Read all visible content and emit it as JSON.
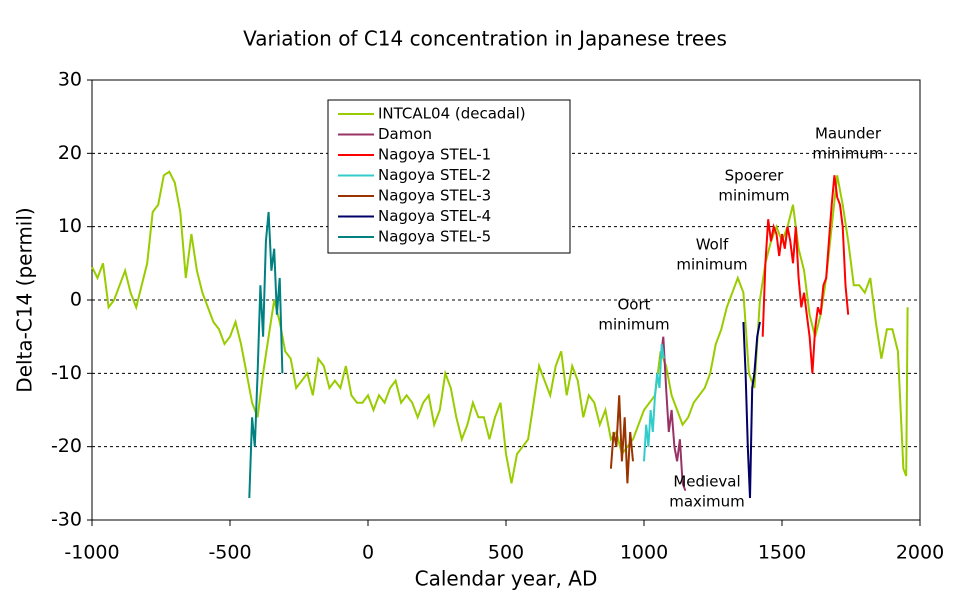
{
  "chart_data": {
    "type": "line",
    "title": "Variation of C14 concentration in Japanese trees",
    "x_label": "Calendar year, AD",
    "y_label": "Delta-C14 (permil)",
    "xlim": [
      -1000,
      2000
    ],
    "xticks": [
      -1000,
      -500,
      0,
      500,
      1000,
      1500,
      2000
    ],
    "ylim": [
      -30,
      30
    ],
    "yticks": [
      -30,
      -20,
      -10,
      0,
      10,
      20,
      30
    ],
    "grid": true,
    "legend": "upper center",
    "series": [
      {
        "name": "INTCAL04 (decadal)",
        "color": "#99cc00",
        "x": [
          -1000,
          -980,
          -960,
          -940,
          -920,
          -900,
          -880,
          -860,
          -840,
          -820,
          -800,
          -780,
          -760,
          -740,
          -720,
          -700,
          -680,
          -660,
          -640,
          -620,
          -600,
          -580,
          -560,
          -540,
          -520,
          -500,
          -480,
          -460,
          -440,
          -420,
          -400,
          -380,
          -360,
          -340,
          -320,
          -300,
          -280,
          -260,
          -240,
          -220,
          -200,
          -180,
          -160,
          -140,
          -120,
          -100,
          -80,
          -60,
          -40,
          -20,
          0,
          20,
          40,
          60,
          80,
          100,
          120,
          140,
          160,
          180,
          200,
          220,
          240,
          260,
          280,
          300,
          320,
          340,
          360,
          380,
          400,
          420,
          440,
          460,
          480,
          500,
          520,
          540,
          560,
          580,
          600,
          620,
          640,
          660,
          680,
          700,
          720,
          740,
          760,
          780,
          800,
          820,
          840,
          860,
          880,
          900,
          920,
          940,
          960,
          980,
          1000,
          1020,
          1040,
          1060,
          1080,
          1100,
          1120,
          1140,
          1160,
          1180,
          1200,
          1220,
          1240,
          1260,
          1280,
          1300,
          1320,
          1340,
          1360,
          1380,
          1400,
          1420,
          1440,
          1460,
          1480,
          1500,
          1520,
          1540,
          1560,
          1580,
          1600,
          1620,
          1640,
          1660,
          1680,
          1700,
          1720,
          1740,
          1760,
          1780,
          1800,
          1820,
          1840,
          1860,
          1880,
          1900,
          1920,
          1940,
          1950,
          1955
        ],
        "values": [
          4.5,
          3,
          5,
          -1,
          0,
          2,
          4,
          1,
          -1,
          2,
          5,
          12,
          13,
          17,
          17.5,
          16,
          12,
          3,
          9,
          4,
          1,
          -1,
          -3,
          -4,
          -6,
          -5,
          -3,
          -6,
          -10,
          -14,
          -16,
          -10,
          -5,
          0,
          -3,
          -7,
          -8,
          -12,
          -11,
          -10,
          -13,
          -8,
          -9,
          -12,
          -11,
          -12,
          -9,
          -13,
          -14,
          -14,
          -13,
          -15,
          -13,
          -14,
          -12,
          -11,
          -14,
          -13,
          -14,
          -16,
          -14,
          -13,
          -17,
          -15,
          -10,
          -12,
          -16,
          -19,
          -17,
          -14,
          -16,
          -16,
          -19,
          -16,
          -14,
          -21,
          -25,
          -21,
          -20,
          -19,
          -14,
          -9,
          -11,
          -13,
          -9,
          -7,
          -13,
          -9,
          -11,
          -16,
          -13,
          -14,
          -17,
          -15,
          -19,
          -18,
          -21,
          -20,
          -19,
          -17,
          -15,
          -14,
          -13,
          -7,
          -9,
          -13,
          -15,
          -17,
          -16,
          -14,
          -13,
          -12,
          -10,
          -6,
          -4,
          -1,
          1,
          3,
          1,
          -10,
          -12,
          0,
          5,
          8,
          10,
          8,
          10,
          13,
          7,
          4,
          -2,
          -5,
          -2,
          3,
          10,
          17,
          13,
          8,
          2,
          2,
          1,
          3,
          -3,
          -8,
          -4,
          -4,
          -7,
          -23,
          -24,
          -1
        ]
      },
      {
        "name": "Damon",
        "color": "#993366",
        "x": [
          1060,
          1070,
          1080,
          1090,
          1100,
          1110,
          1120,
          1130,
          1140,
          1150
        ],
        "values": [
          -8,
          -5,
          -12,
          -18,
          -15,
          -20,
          -22,
          -19,
          -25,
          -26
        ]
      },
      {
        "name": "Nagoya STEL-1",
        "color": "#ff0000",
        "x": [
          1430,
          1440,
          1450,
          1460,
          1470,
          1480,
          1490,
          1500,
          1510,
          1520,
          1530,
          1540,
          1550,
          1560,
          1570,
          1580,
          1590,
          1600,
          1610,
          1620,
          1630,
          1640,
          1650,
          1660,
          1670,
          1680,
          1690,
          1700,
          1710,
          1720,
          1730,
          1740
        ],
        "values": [
          -5,
          5,
          11,
          8,
          10,
          9,
          6,
          9,
          7,
          10,
          8,
          5,
          10,
          3,
          -1,
          1,
          -2,
          -5,
          -10,
          -4,
          -1,
          -2,
          2,
          3,
          8,
          13,
          17,
          14,
          13,
          10,
          2,
          -2
        ]
      },
      {
        "name": "Nagoya STEL-2",
        "color": "#33cccc",
        "x": [
          1000,
          1008,
          1016,
          1024,
          1032,
          1040,
          1048,
          1056,
          1064,
          1072
        ],
        "values": [
          -22,
          -17,
          -20,
          -15,
          -18,
          -13,
          -10,
          -12,
          -6,
          -8
        ]
      },
      {
        "name": "Nagoya STEL-3",
        "color": "#993300",
        "x": [
          880,
          890,
          900,
          910,
          920,
          930,
          940,
          950,
          960
        ],
        "values": [
          -23,
          -18,
          -20,
          -13,
          -22,
          -16,
          -25,
          -18,
          -22
        ]
      },
      {
        "name": "Nagoya STEL-4",
        "color": "#000066",
        "x": [
          1360,
          1368,
          1376,
          1384,
          1392,
          1400,
          1410,
          1420
        ],
        "values": [
          -3,
          -10,
          -20,
          -27,
          -12,
          -10,
          -5,
          -3
        ]
      },
      {
        "name": "Nagoya STEL-5",
        "color": "#008080",
        "x": [
          -430,
          -420,
          -410,
          -400,
          -390,
          -380,
          -370,
          -360,
          -350,
          -340,
          -330,
          -320,
          -310
        ],
        "values": [
          -27,
          -16,
          -20,
          -10,
          2,
          -5,
          8,
          12,
          4,
          7,
          -2,
          3,
          -10
        ]
      }
    ],
    "annotations": [
      {
        "lines": [
          "Oort",
          "minimum"
        ],
        "color": "#3333cc"
      },
      {
        "lines": [
          "Wolf",
          "minimum"
        ],
        "color": "#3333cc"
      },
      {
        "lines": [
          "Spoerer",
          "minimum"
        ],
        "color": "#3333cc"
      },
      {
        "lines": [
          "Maunder",
          "minimum"
        ],
        "color": "#3333cc"
      },
      {
        "lines": [
          "Medieval",
          "maximum"
        ],
        "color": "#ee8888"
      }
    ]
  }
}
